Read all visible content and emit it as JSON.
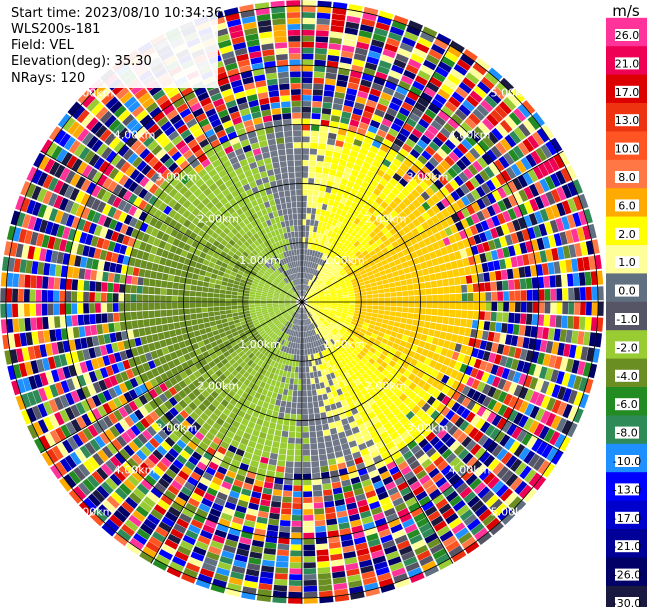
{
  "info": {
    "start_time": "Start time: 2023/08/10 10:34:36",
    "instrument": "WLS200s-181",
    "field": "Field: VEL",
    "elevation": "Elevation(deg): 35.30",
    "nrays": "NRays: 120"
  },
  "colorbar": {
    "unit": "m/s",
    "ticks": [
      "26.0",
      "21.0",
      "17.0",
      "13.0",
      "10.0",
      "8.0",
      "6.0",
      "2.0",
      "1.0",
      "0.0",
      "-1.0",
      "-2.0",
      "-4.0",
      "-6.0",
      "-8.0",
      "-10.0",
      "-13.0",
      "-17.0",
      "-21.0",
      "-26.0",
      "-30.0"
    ],
    "colors": [
      "#ff3399",
      "#ee0055",
      "#dd0000",
      "#ee3311",
      "#ff5522",
      "#ff7744",
      "#ffaa00",
      "#ffff00",
      "#ffff99",
      "#607080",
      "#555566",
      "#99cc33",
      "#6b8e23",
      "#228b22",
      "#2e8b57",
      "#1e90ff",
      "#0000ff",
      "#0000cc",
      "#000099",
      "#000066",
      "#1a1a40"
    ]
  },
  "chart_data": {
    "type": "ppi-radar",
    "field": "VEL",
    "units": "m/s",
    "n_rays": 120,
    "elevation_deg": 35.3,
    "range_ring_labels": [
      "1.00km",
      "2.00km",
      "3.00km",
      "4.00km",
      "5.00km"
    ],
    "range_rings_km": [
      1,
      2,
      3,
      4,
      5
    ],
    "azimuth_spokes_deg": [
      0,
      30,
      60,
      90,
      120,
      150,
      180,
      210,
      240,
      270,
      300,
      330
    ],
    "max_range_km": 5.1,
    "valid_range_km": 3.1,
    "color_scale": {
      "min": -30.0,
      "max": 26.0,
      "levels": [
        26.0,
        21.0,
        17.0,
        13.0,
        10.0,
        8.0,
        6.0,
        2.0,
        1.0,
        0.0,
        -1.0,
        -2.0,
        -4.0,
        -6.0,
        -8.0,
        -10.0,
        -13.0,
        -17.0,
        -21.0,
        -26.0,
        -30.0
      ]
    },
    "velocity_pattern": "positive (toward east, yellow 2-6 m/s) on eastern half, negative (green -2 to -4 m/s) on western half, near-zero grey band around center and along north/south; noisy random values beyond ~3.1 km"
  }
}
